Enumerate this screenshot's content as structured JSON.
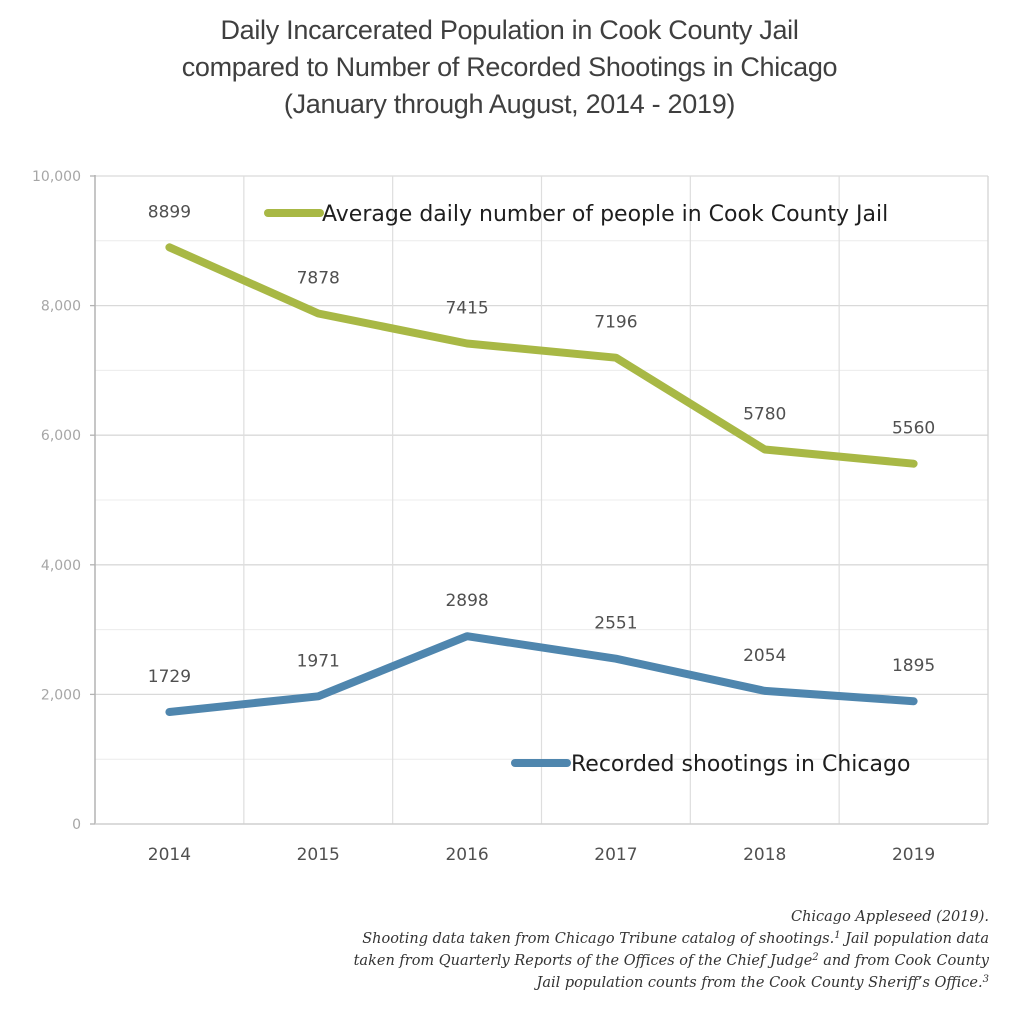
{
  "title_lines": [
    "Daily Incarcerated Population in Cook County Jail",
    "compared to Number of Recorded Shootings in Chicago",
    "(January through August, 2014 - 2019)"
  ],
  "chart_data": {
    "type": "line",
    "title": "Daily Incarcerated Population in Cook County Jail compared to Number of Recorded Shootings in Chicago (January through August, 2014 - 2019)",
    "xlabel": "",
    "ylabel": "",
    "categories": [
      "2014",
      "2015",
      "2016",
      "2017",
      "2018",
      "2019"
    ],
    "ylim": [
      0,
      10000
    ],
    "yticks": [
      0,
      2000,
      4000,
      6000,
      8000,
      10000
    ],
    "ytick_labels": [
      "0",
      "2,000",
      "4,000",
      "6,000",
      "8,000",
      "10,000"
    ],
    "minor_grid_step": 1000,
    "grid": true,
    "series": [
      {
        "name": "Average daily number of people in Cook County Jail",
        "color": "#A8B845",
        "values": [
          8899,
          7878,
          7415,
          7196,
          5780,
          5560
        ],
        "data_labels": [
          "8899",
          "7878",
          "7415",
          "7196",
          "5780",
          "5560"
        ],
        "legend_placement": "top"
      },
      {
        "name": "Recorded shootings in Chicago",
        "color": "#4F86AE",
        "values": [
          1729,
          1971,
          2898,
          2551,
          2054,
          1895
        ],
        "data_labels": [
          "1729",
          "1971",
          "2898",
          "2551",
          "2054",
          "1895"
        ],
        "legend_placement": "bottom-right"
      }
    ]
  },
  "source": {
    "line1": "Chicago Appleseed (2019).",
    "line2a": "Shooting data taken from Chicago Tribune catalog of shootings.",
    "fn1": "1",
    "line2b": " Jail population data",
    "line3a": "taken from Quarterly Reports of the Offices of the Chief Judge",
    "fn2": "2",
    "line3b": " and from Cook County",
    "line4a": "Jail population counts from the Cook County Sheriff’s Office.",
    "fn3": "3"
  }
}
